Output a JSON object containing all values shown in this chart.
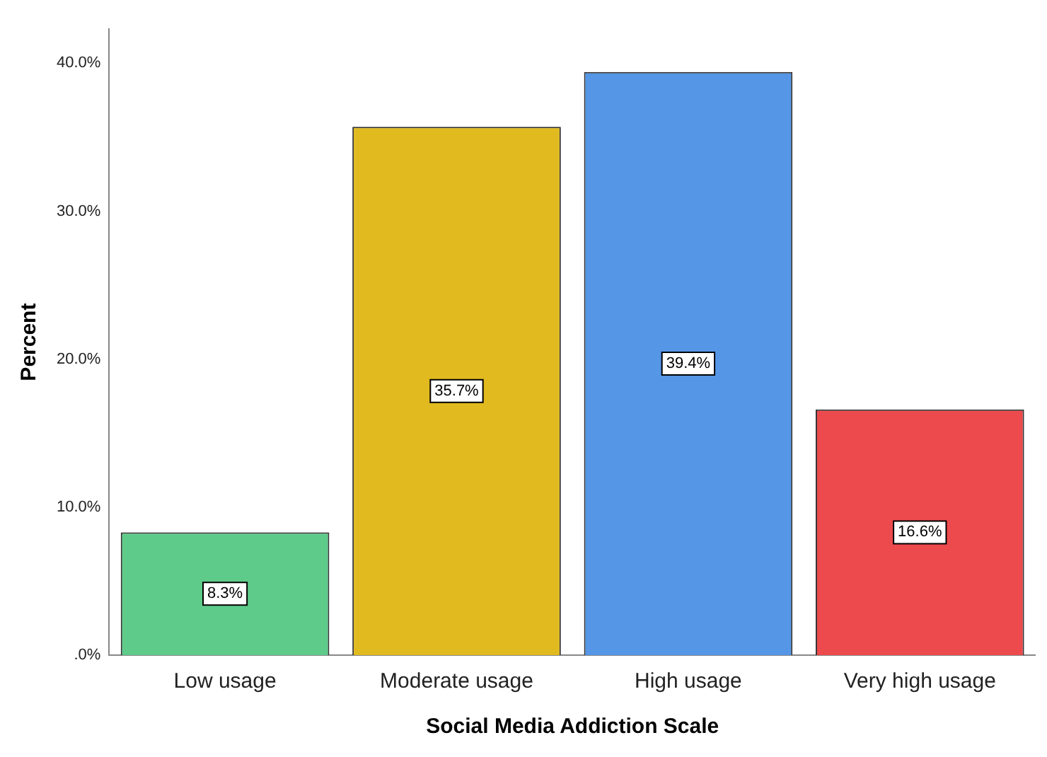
{
  "chart_data": {
    "type": "bar",
    "xlabel": "Social Media Addiction Scale",
    "ylabel": "Percent",
    "categories": [
      "Low usage",
      "Moderate usage",
      "High usage",
      "Very high usage"
    ],
    "values": [
      8.3,
      35.7,
      39.4,
      16.6
    ],
    "colors": [
      "#5ecb8a",
      "#e0ba1f",
      "#5596e6",
      "#ec4a4d"
    ],
    "value_labels": [
      "8.3%",
      "35.7%",
      "39.4%",
      "16.6%"
    ],
    "ylim": [
      0,
      42.3
    ],
    "yticks": [
      {
        "value": 0,
        "label": ".0%"
      },
      {
        "value": 10,
        "label": "10.0%"
      },
      {
        "value": 20,
        "label": "20.0%"
      },
      {
        "value": 30,
        "label": "30.0%"
      },
      {
        "value": 40,
        "label": "40.0%"
      }
    ],
    "grid": false,
    "legend": false
  }
}
